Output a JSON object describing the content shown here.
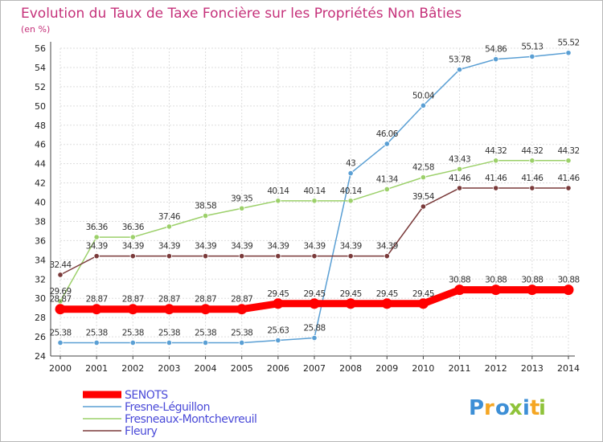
{
  "title": "Evolution du Taux de Taxe Foncière sur les Propriétés Non Bâties",
  "unit_label": "(en %)",
  "logo": {
    "letters": [
      "P",
      "r",
      "o",
      "x",
      "i",
      "t",
      "i"
    ],
    "colors": [
      "#3d8fd6",
      "#f5a623",
      "#3d8fd6",
      "#8fc33a",
      "#3d8fd6",
      "#f5a623",
      "#8fc33a"
    ]
  },
  "chart_data": {
    "type": "line",
    "x": [
      "2000",
      "2001",
      "2002",
      "2003",
      "2004",
      "2005",
      "2006",
      "2007",
      "2008",
      "2009",
      "2010",
      "2011",
      "2012",
      "2013",
      "2014"
    ],
    "ylim": [
      24,
      56
    ],
    "yticks": [
      "24",
      "26",
      "28",
      "30",
      "32",
      "34",
      "36",
      "38",
      "40",
      "42",
      "44",
      "46",
      "48",
      "50",
      "52",
      "54",
      "56"
    ],
    "grid": true,
    "legend": "bottom-left",
    "series": [
      {
        "name": "Fresne-Léguillon",
        "color": "#5a9fd4",
        "values": [
          25.38,
          25.38,
          25.38,
          25.38,
          25.38,
          25.38,
          25.63,
          25.88,
          43,
          46.06,
          50.04,
          53.78,
          54.86,
          55.13,
          55.52
        ],
        "labels": [
          "25.38",
          "25.38",
          "25.38",
          "25.38",
          "25.38",
          "25.38",
          "25.63",
          "25.88",
          "43",
          "46.06",
          "50.04",
          "53.78",
          "54.86",
          "55.13",
          "55.52"
        ]
      },
      {
        "name": "Fresneaux-Montchevreuil",
        "color": "#9cd06a",
        "values": [
          29.69,
          36.36,
          36.36,
          37.46,
          38.58,
          39.35,
          40.14,
          40.14,
          40.14,
          41.34,
          42.58,
          43.43,
          44.32,
          44.32,
          44.32
        ],
        "labels": [
          "29.69",
          "36.36",
          "36.36",
          "37.46",
          "38.58",
          "39.35",
          "40.14",
          "40.14",
          "40.14",
          "41.34",
          "42.58",
          "43.43",
          "44.32",
          "44.32",
          "44.32"
        ]
      },
      {
        "name": "Fleury",
        "color": "#7a3a3a",
        "values": [
          32.44,
          34.39,
          34.39,
          34.39,
          34.39,
          34.39,
          34.39,
          34.39,
          34.39,
          34.39,
          39.54,
          41.46,
          41.46,
          41.46,
          41.46
        ],
        "labels": [
          "32.44",
          "34.39",
          "34.39",
          "34.39",
          "34.39",
          "34.39",
          "34.39",
          "34.39",
          "34.39",
          "34.39",
          "39.54",
          "41.46",
          "41.46",
          "41.46",
          "41.46"
        ]
      },
      {
        "name": "SENOTS",
        "color": "#ff0000",
        "values": [
          28.87,
          28.87,
          28.87,
          28.87,
          28.87,
          28.87,
          29.45,
          29.45,
          29.45,
          29.45,
          29.45,
          30.88,
          30.88,
          30.88,
          30.88
        ],
        "labels": [
          "28.87",
          "28.87",
          "28.87",
          "28.87",
          "28.87",
          "28.87",
          "29.45",
          "29.45",
          "29.45",
          "29.45",
          "29.45",
          "30.88",
          "30.88",
          "30.88",
          "30.88"
        ]
      }
    ],
    "legend_entries": [
      {
        "name": "SENOTS",
        "color": "#ff0000"
      },
      {
        "name": "Fresne-Léguillon",
        "color": "#5a9fd4"
      },
      {
        "name": "Fresneaux-Montchevreuil",
        "color": "#9cd06a"
      },
      {
        "name": "Fleury",
        "color": "#7a3a3a"
      }
    ]
  }
}
